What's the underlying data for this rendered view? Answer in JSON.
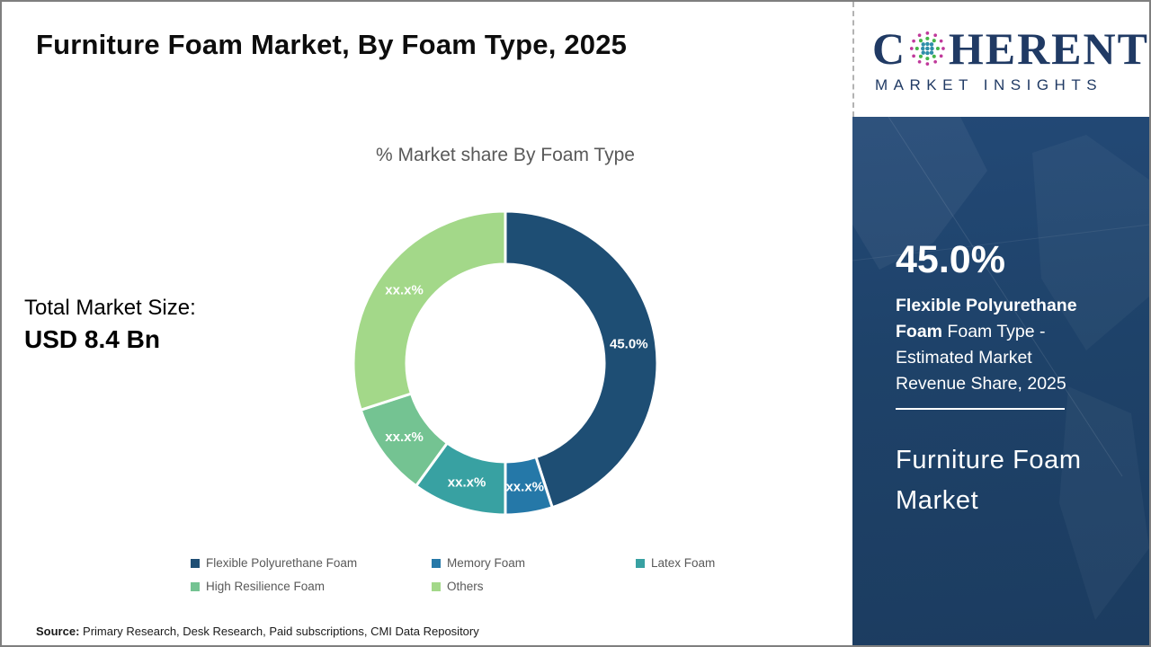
{
  "header": {
    "title": "Furniture Foam Market, By Foam Type, 2025"
  },
  "logo": {
    "name_first_letter": "C",
    "name_rest": "HERENT",
    "tagline": "MARKET INSIGHTS",
    "navy": "#203a64",
    "globe_dot_colors": {
      "outer": "#c0399b",
      "middle": "#45b649",
      "inner": "#2e8fa8"
    }
  },
  "total_market": {
    "label": "Total Market Size:",
    "value": "USD 8.4 Bn"
  },
  "sidebar": {
    "highlight_value": "45.0%",
    "highlight_bold": "Flexible Polyurethane Foam",
    "highlight_rest": " Foam Type - Estimated Market Revenue Share, 2025",
    "market_name": "Furniture Foam Market",
    "background": "#1e4269"
  },
  "source": {
    "label": "Source:",
    "text": "Primary Research, Desk Research, Paid subscriptions, CMI Data Repository"
  },
  "chart_data": {
    "type": "pie",
    "subtype": "donut",
    "title": "% Market share By Foam Type",
    "categories": [
      "Flexible Polyurethane Foam",
      "Memory Foam",
      "Latex Foam",
      "High Resilience Foam",
      "Others"
    ],
    "values": [
      45.0,
      5.0,
      10.0,
      10.0,
      30.0
    ],
    "labels": [
      "45.0%",
      "xx.x%",
      "xx.x%",
      "xx.x%",
      "xx.x%"
    ],
    "colors": [
      "#1e4e74",
      "#2578a8",
      "#38a1a2",
      "#74c392",
      "#a3d889"
    ],
    "start_angle_deg": 0,
    "direction": "clockwise",
    "inner_radius_ratio": 0.65,
    "legend_position": "bottom",
    "label_text_color": "#ffffff"
  }
}
